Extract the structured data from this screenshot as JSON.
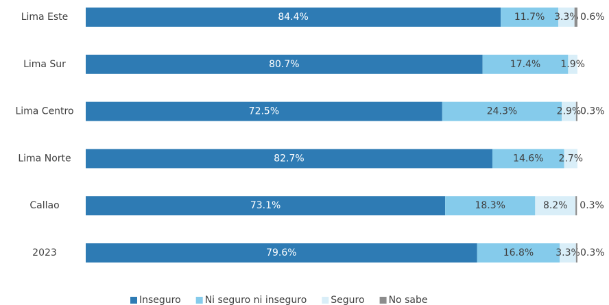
{
  "chart_data": {
    "type": "stacked-barh",
    "categories": [
      "Lima Este",
      "Lima Sur",
      "Lima Centro",
      "Lima Norte",
      "Callao",
      "2023"
    ],
    "series": [
      {
        "name": "Inseguro",
        "color": "#2e7bb4",
        "values": [
          84.4,
          80.7,
          72.5,
          82.7,
          73.1,
          79.6
        ],
        "value_labels": [
          "84.4%",
          "80.7%",
          "72.5%",
          "82.7%",
          "73.1%",
          "79.6%"
        ]
      },
      {
        "name": "Ni seguro ni inseguro",
        "color": "#85cbeb",
        "values": [
          11.7,
          17.4,
          24.3,
          14.6,
          18.3,
          16.8
        ],
        "value_labels": [
          "11.7%",
          "17.4%",
          "24.3%",
          "14.6%",
          "18.3%",
          "16.8%"
        ]
      },
      {
        "name": "Seguro",
        "color": "#d9eef8",
        "values": [
          3.3,
          1.9,
          2.9,
          2.7,
          8.2,
          3.3
        ],
        "value_labels": [
          "3.3%",
          "1.9%",
          "2.9%",
          "2.7%",
          "8.2%",
          "3.3%"
        ]
      },
      {
        "name": "No sabe",
        "color": "#8c8c8c",
        "values": [
          0.6,
          null,
          0.3,
          null,
          0.3,
          0.3
        ],
        "value_labels": [
          "0.6%",
          null,
          "0.3%",
          null,
          "0.3%",
          "0.3%"
        ]
      }
    ],
    "legend": "bottom"
  }
}
